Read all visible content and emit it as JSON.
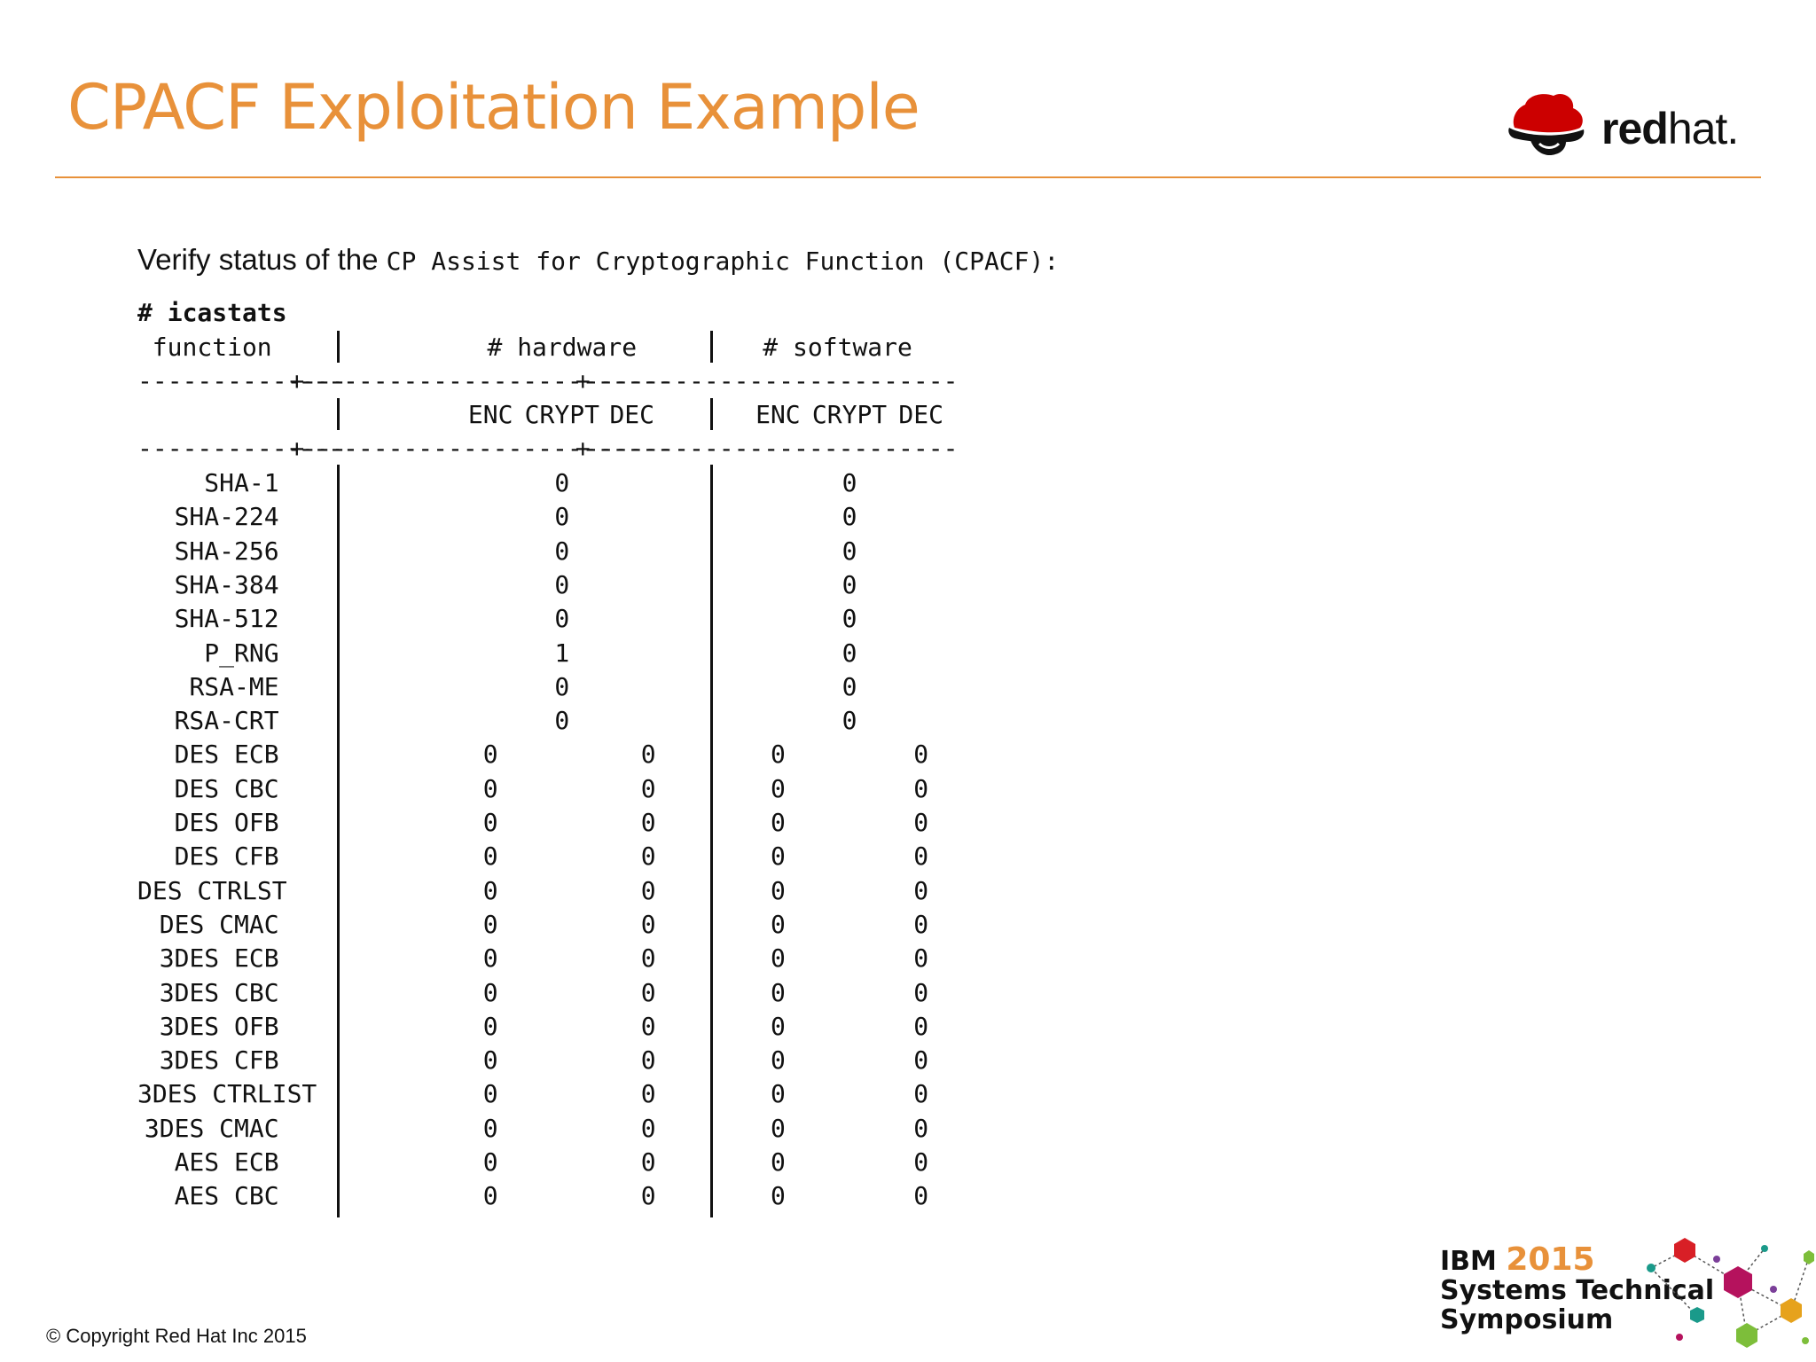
{
  "slide": {
    "title": "CPACF Exploitation Example",
    "intro_text": "Verify status of the",
    "intro_code": "CP Assist for Cryptographic Function (CPACF):",
    "command": "# icastats"
  },
  "logo": {
    "icon": "red-hat-shadowman-icon",
    "word_bold": "red",
    "word_light": "hat",
    "mark": ".",
    "color": "#CC0000"
  },
  "table": {
    "header_function": "function",
    "header_hardware": "# hardware",
    "header_software": "# software",
    "subheaders": [
      "ENC",
      "CRYPT",
      "DEC",
      "ENC",
      "CRYPT",
      "DEC"
    ],
    "separator_a": "--------------",
    "separator_b": "-------------------------",
    "separator_c": "-------------------------",
    "separator_joint": "+",
    "rows": [
      {
        "function": "SHA-1",
        "hw_crypt": "0",
        "sw_crypt": "0"
      },
      {
        "function": "SHA-224",
        "hw_crypt": "0",
        "sw_crypt": "0"
      },
      {
        "function": "SHA-256",
        "hw_crypt": "0",
        "sw_crypt": "0"
      },
      {
        "function": "SHA-384",
        "hw_crypt": "0",
        "sw_crypt": "0"
      },
      {
        "function": "SHA-512",
        "hw_crypt": "0",
        "sw_crypt": "0"
      },
      {
        "function": "P_RNG",
        "hw_crypt": "1",
        "sw_crypt": "0"
      },
      {
        "function": "RSA-ME",
        "hw_crypt": "0",
        "sw_crypt": "0"
      },
      {
        "function": "RSA-CRT",
        "hw_crypt": "0",
        "sw_crypt": "0"
      },
      {
        "function": "DES ECB",
        "hw_enc": "0",
        "hw_dec": "0",
        "sw_enc": "0",
        "sw_dec": "0"
      },
      {
        "function": "DES CBC",
        "hw_enc": "0",
        "hw_dec": "0",
        "sw_enc": "0",
        "sw_dec": "0"
      },
      {
        "function": "DES OFB",
        "hw_enc": "0",
        "hw_dec": "0",
        "sw_enc": "0",
        "sw_dec": "0"
      },
      {
        "function": "DES CFB",
        "hw_enc": "0",
        "hw_dec": "0",
        "sw_enc": "0",
        "sw_dec": "0"
      },
      {
        "function": "DES CTRLST",
        "hw_enc": "0",
        "hw_dec": "0",
        "sw_enc": "0",
        "sw_dec": "0"
      },
      {
        "function": "DES CMAC",
        "hw_enc": "0",
        "hw_dec": "0",
        "sw_enc": "0",
        "sw_dec": "0"
      },
      {
        "function": "3DES ECB",
        "hw_enc": "0",
        "hw_dec": "0",
        "sw_enc": "0",
        "sw_dec": "0"
      },
      {
        "function": "3DES CBC",
        "hw_enc": "0",
        "hw_dec": "0",
        "sw_enc": "0",
        "sw_dec": "0"
      },
      {
        "function": "3DES OFB",
        "hw_enc": "0",
        "hw_dec": "0",
        "sw_enc": "0",
        "sw_dec": "0"
      },
      {
        "function": "3DES CFB",
        "hw_enc": "0",
        "hw_dec": "0",
        "sw_enc": "0",
        "sw_dec": "0"
      },
      {
        "function": "3DES CTRLIST",
        "hw_enc": "0",
        "hw_dec": "0",
        "sw_enc": "0",
        "sw_dec": "0"
      },
      {
        "function": "3DES CMAC",
        "hw_enc": "0",
        "hw_dec": "0",
        "sw_enc": "0",
        "sw_dec": "0"
      },
      {
        "function": "AES ECB",
        "hw_enc": "0",
        "hw_dec": "0",
        "sw_enc": "0",
        "sw_dec": "0"
      },
      {
        "function": "AES CBC",
        "hw_enc": "0",
        "hw_dec": "0",
        "sw_enc": "0",
        "sw_dec": "0"
      }
    ]
  },
  "footer": {
    "copyright": "© Copyright Red Hat Inc 2015",
    "event_brand": "IBM",
    "event_year": "2015",
    "event_line2": "Systems Technical",
    "event_line3": "Symposium",
    "event_graphic": "molecule-cubes-icon"
  },
  "colors": {
    "accent": "#E8913A",
    "text": "#111111",
    "redhat_red": "#CC0000"
  }
}
